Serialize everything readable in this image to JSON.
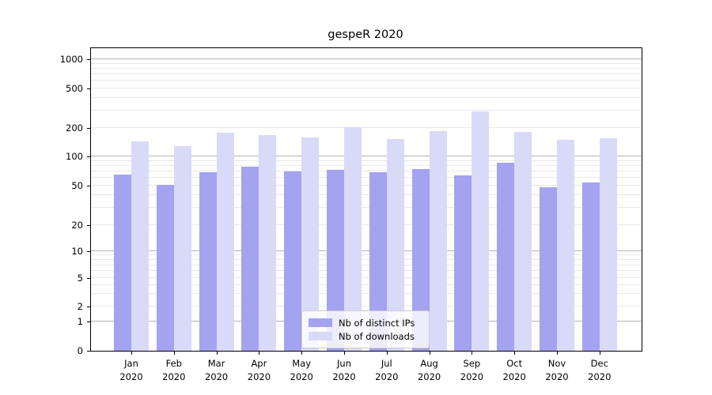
{
  "title": "gespeR 2020",
  "colors": {
    "ips_bar": "#a3a3ef",
    "downloads_bar": "#d9d9f8",
    "major_grid": "#b3b3b3",
    "minor_grid": "#e8e8e8",
    "spine": "#000000",
    "legend_border": "#cccccc"
  },
  "legend": {
    "items": [
      {
        "label": "Nb of distinct IPs"
      },
      {
        "label": "Nb of downloads"
      }
    ]
  },
  "chart_data": {
    "type": "bar",
    "title": "gespeR 2020",
    "categories": [
      "Jan",
      "Feb",
      "Mar",
      "Apr",
      "May",
      "Jun",
      "Jul",
      "Aug",
      "Sep",
      "Oct",
      "Nov",
      "Dec"
    ],
    "year_label": "2020",
    "series": [
      {
        "name": "Nb of distinct IPs",
        "color": "#a3a3ef",
        "values": [
          65,
          51,
          68,
          78,
          70,
          73,
          68,
          74,
          64,
          86,
          48,
          54
        ]
      },
      {
        "name": "Nb of downloads",
        "color": "#d9d9f8",
        "values": [
          146,
          128,
          180,
          168,
          160,
          204,
          153,
          185,
          294,
          181,
          149,
          157
        ]
      }
    ],
    "xlabel": "",
    "ylabel": "",
    "y_ticks": [
      0,
      1,
      2,
      5,
      10,
      20,
      50,
      100,
      200,
      500,
      1000
    ],
    "ylim": [
      0,
      1400
    ],
    "y_scale": "symlog",
    "grid": true,
    "legend_position": "lower center"
  }
}
